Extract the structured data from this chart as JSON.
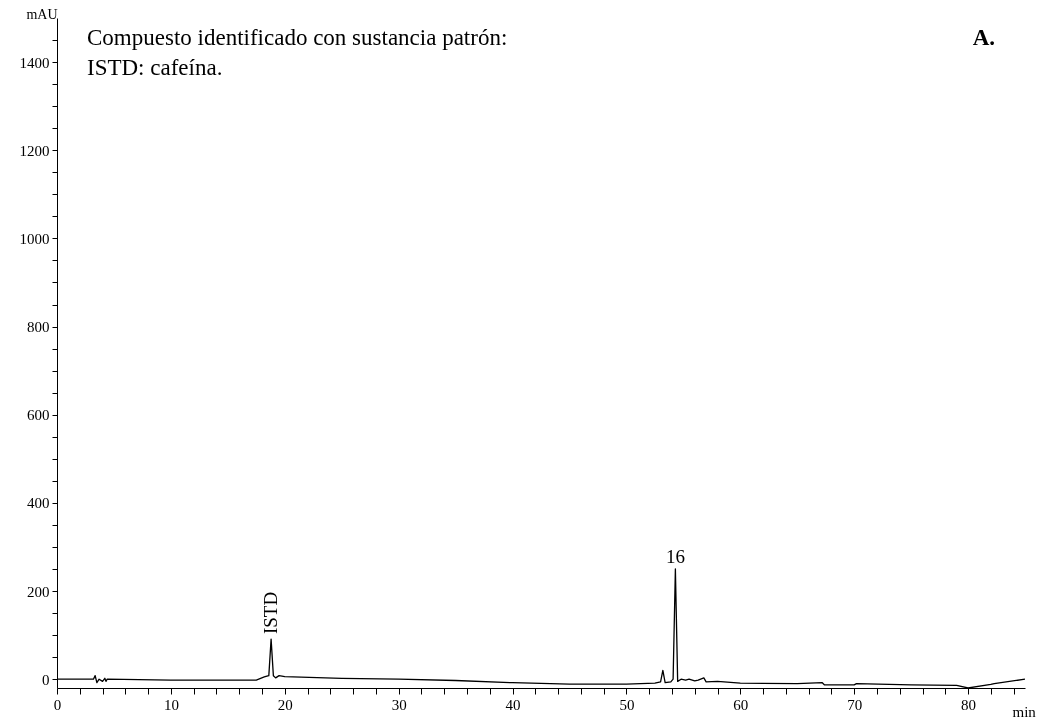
{
  "chart_data": {
    "type": "line",
    "xlabel": "min",
    "ylabel": "mAU",
    "annotations": [
      "Compuesto identificado con sustancia patrón:",
      "ISTD: cafeína.",
      "A.",
      {
        "text": "ISTD",
        "x": 18.8,
        "y": 91
      },
      {
        "text": "16",
        "x": 54.3,
        "y": 250
      }
    ],
    "x": [
      0,
      3.2,
      3.35,
      3.5,
      3.7,
      4.0,
      4.2,
      4.3,
      4.4,
      10,
      17.5,
      18.2,
      18.6,
      18.8,
      19.0,
      19.2,
      19.5,
      20,
      25,
      30,
      35,
      40,
      45,
      50,
      52.5,
      53.0,
      53.2,
      53.4,
      53.9,
      54.1,
      54.3,
      54.5,
      54.8,
      55.2,
      55.5,
      56,
      56.3,
      56.8,
      57,
      58,
      60,
      65,
      67.2,
      67.4,
      70,
      70.2,
      75,
      79,
      80,
      82,
      82.3,
      85
    ],
    "series": [
      {
        "color": "#000000",
        "values": [
          0,
          0,
          8,
          -8,
          0,
          -5,
          2,
          -5,
          0,
          -2,
          -2,
          5,
          8,
          91,
          8,
          3,
          8,
          6,
          2,
          0,
          -3,
          -8,
          -11,
          -11,
          -9,
          -6,
          20,
          -8,
          -6,
          0,
          250,
          -5,
          0,
          -2,
          0,
          -4,
          -2,
          3,
          -6,
          -5,
          -9,
          -10,
          -8,
          -13,
          -13,
          -10,
          -13,
          -14,
          -20,
          -12,
          -10,
          0
        ]
      }
    ],
    "xlim": [
      0,
      85
    ],
    "ylim": [
      -20,
      1500
    ],
    "xticks": [
      0,
      {
        "value": 2,
        "label": null
      },
      {
        "value": 4,
        "label": null
      },
      {
        "value": 6,
        "label": null
      },
      {
        "value": 8,
        "label": null
      },
      10,
      {
        "value": 12,
        "label": null
      },
      {
        "value": 14,
        "label": null
      },
      {
        "value": 16,
        "label": null
      },
      {
        "value": 18,
        "label": null
      },
      20,
      {
        "value": 22,
        "label": null
      },
      {
        "value": 24,
        "label": null
      },
      {
        "value": 26,
        "label": null
      },
      {
        "value": 28,
        "label": null
      },
      30,
      {
        "value": 32,
        "label": null
      },
      {
        "value": 34,
        "label": null
      },
      {
        "value": 36,
        "label": null
      },
      {
        "value": 38,
        "label": null
      },
      40,
      {
        "value": 42,
        "label": null
      },
      {
        "value": 44,
        "label": null
      },
      {
        "value": 46,
        "label": null
      },
      {
        "value": 48,
        "label": null
      },
      50,
      {
        "value": 52,
        "label": null
      },
      {
        "value": 54,
        "label": null
      },
      {
        "value": 56,
        "label": null
      },
      {
        "value": 58,
        "label": null
      },
      60,
      {
        "value": 62,
        "label": null
      },
      {
        "value": 64,
        "label": null
      },
      {
        "value": 66,
        "label": null
      },
      {
        "value": 68,
        "label": null
      },
      70,
      {
        "value": 72,
        "label": null
      },
      {
        "value": 74,
        "label": null
      },
      {
        "value": 76,
        "label": null
      },
      {
        "value": 78,
        "label": null
      },
      80,
      {
        "value": 82,
        "label": null
      },
      {
        "value": 84,
        "label": null
      }
    ],
    "yticks": [
      0,
      {
        "value": 50,
        "label": null
      },
      {
        "value": 100,
        "label": null
      },
      {
        "value": 150,
        "label": null
      },
      200,
      {
        "value": 250,
        "label": null
      },
      {
        "value": 300,
        "label": null
      },
      {
        "value": 350,
        "label": null
      },
      400,
      {
        "value": 450,
        "label": null
      },
      {
        "value": 500,
        "label": null
      },
      {
        "value": 550,
        "label": null
      },
      600,
      {
        "value": 650,
        "label": null
      },
      {
        "value": 700,
        "label": null
      },
      {
        "value": 750,
        "label": null
      },
      800,
      {
        "value": 850,
        "label": null
      },
      {
        "value": 900,
        "label": null
      },
      {
        "value": 950,
        "label": null
      },
      1000,
      {
        "value": 1050,
        "label": null
      },
      {
        "value": 1100,
        "label": null
      },
      {
        "value": 1150,
        "label": null
      },
      1200,
      {
        "value": 1250,
        "label": null
      },
      {
        "value": 1300,
        "label": null
      },
      {
        "value": 1350,
        "label": null
      },
      1400,
      {
        "value": 1450,
        "label": null
      }
    ],
    "grid": false,
    "line_style": "solid",
    "marker": "none"
  }
}
